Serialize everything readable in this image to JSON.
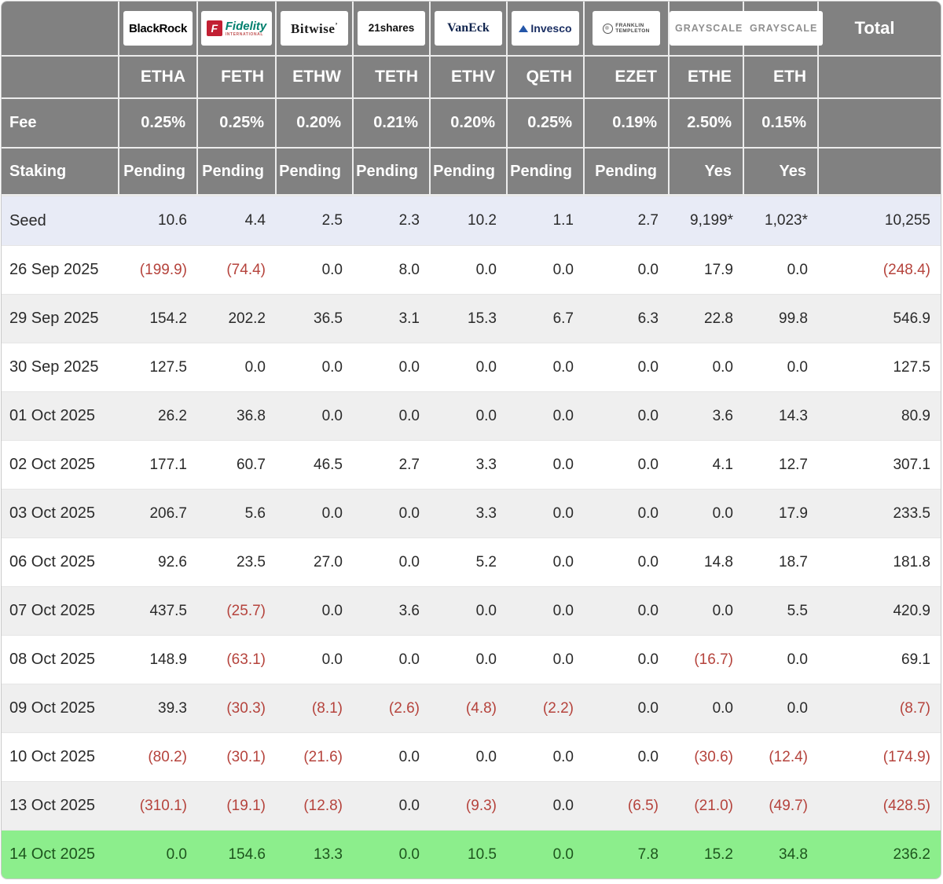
{
  "colors": {
    "header_bg": "#818181",
    "seed_bg": "#e8ebf6",
    "alt_bg": "#efefef",
    "green_bg": "#8cee8c",
    "green_text": "#1e551e",
    "negative": "#b5433c"
  },
  "header": {
    "fee_label": "Fee",
    "staking_label": "Staking",
    "total_label": "Total",
    "issuers": [
      {
        "name": "BlackRock",
        "ticker": "ETHA",
        "fee": "0.25%",
        "staking": "Pending"
      },
      {
        "name": "Fidelity",
        "mark": "F",
        "sub": "INTERNATIONAL",
        "ticker": "FETH",
        "fee": "0.25%",
        "staking": "Pending"
      },
      {
        "name": "Bitwise",
        "mark": "’",
        "ticker": "ETHW",
        "fee": "0.20%",
        "staking": "Pending"
      },
      {
        "name": "21shares",
        "ticker": "TETH",
        "fee": "0.21%",
        "staking": "Pending"
      },
      {
        "name": "VanEck",
        "ticker": "ETHV",
        "fee": "0.20%",
        "staking": "Pending"
      },
      {
        "name": "Invesco",
        "ticker": "QETH",
        "fee": "0.25%",
        "staking": "Pending"
      },
      {
        "name": "Franklin Templeton",
        "line1": "FRANKLIN",
        "line2": "TEMPLETON",
        "ticker": "EZET",
        "fee": "0.19%",
        "staking": "Pending"
      },
      {
        "name": "GRAYSCALE",
        "ticker": "ETHE",
        "fee": "2.50%",
        "staking": "Yes"
      },
      {
        "name": "GRAYSCALE",
        "ticker": "ETH",
        "fee": "0.15%",
        "staking": "Yes"
      }
    ]
  },
  "table": {
    "rows": [
      {
        "label": "Seed",
        "variant": "seed",
        "values": [
          "10.6",
          "4.4",
          "2.5",
          "2.3",
          "10.2",
          "1.1",
          "2.7",
          "9,199*",
          "1,023*",
          "10,255"
        ]
      },
      {
        "label": "26 Sep 2025",
        "values": [
          "(199.9)",
          "(74.4)",
          "0.0",
          "8.0",
          "0.0",
          "0.0",
          "0.0",
          "17.9",
          "0.0",
          "(248.4)"
        ]
      },
      {
        "label": "29 Sep 2025",
        "values": [
          "154.2",
          "202.2",
          "36.5",
          "3.1",
          "15.3",
          "6.7",
          "6.3",
          "22.8",
          "99.8",
          "546.9"
        ]
      },
      {
        "label": "30 Sep 2025",
        "values": [
          "127.5",
          "0.0",
          "0.0",
          "0.0",
          "0.0",
          "0.0",
          "0.0",
          "0.0",
          "0.0",
          "127.5"
        ]
      },
      {
        "label": "01 Oct 2025",
        "values": [
          "26.2",
          "36.8",
          "0.0",
          "0.0",
          "0.0",
          "0.0",
          "0.0",
          "3.6",
          "14.3",
          "80.9"
        ]
      },
      {
        "label": "02 Oct 2025",
        "values": [
          "177.1",
          "60.7",
          "46.5",
          "2.7",
          "3.3",
          "0.0",
          "0.0",
          "4.1",
          "12.7",
          "307.1"
        ]
      },
      {
        "label": "03 Oct 2025",
        "values": [
          "206.7",
          "5.6",
          "0.0",
          "0.0",
          "3.3",
          "0.0",
          "0.0",
          "0.0",
          "17.9",
          "233.5"
        ]
      },
      {
        "label": "06 Oct 2025",
        "values": [
          "92.6",
          "23.5",
          "27.0",
          "0.0",
          "5.2",
          "0.0",
          "0.0",
          "14.8",
          "18.7",
          "181.8"
        ]
      },
      {
        "label": "07 Oct 2025",
        "values": [
          "437.5",
          "(25.7)",
          "0.0",
          "3.6",
          "0.0",
          "0.0",
          "0.0",
          "0.0",
          "5.5",
          "420.9"
        ]
      },
      {
        "label": "08 Oct 2025",
        "values": [
          "148.9",
          "(63.1)",
          "0.0",
          "0.0",
          "0.0",
          "0.0",
          "0.0",
          "(16.7)",
          "0.0",
          "69.1"
        ]
      },
      {
        "label": "09 Oct 2025",
        "values": [
          "39.3",
          "(30.3)",
          "(8.1)",
          "(2.6)",
          "(4.8)",
          "(2.2)",
          "0.0",
          "0.0",
          "0.0",
          "(8.7)"
        ]
      },
      {
        "label": "10 Oct 2025",
        "values": [
          "(80.2)",
          "(30.1)",
          "(21.6)",
          "0.0",
          "0.0",
          "0.0",
          "0.0",
          "(30.6)",
          "(12.4)",
          "(174.9)"
        ]
      },
      {
        "label": "13 Oct 2025",
        "values": [
          "(310.1)",
          "(19.1)",
          "(12.8)",
          "0.0",
          "(9.3)",
          "0.0",
          "(6.5)",
          "(21.0)",
          "(49.7)",
          "(428.5)"
        ]
      },
      {
        "label": "14 Oct 2025",
        "variant": "green",
        "values": [
          "0.0",
          "154.6",
          "13.3",
          "0.0",
          "10.5",
          "0.0",
          "7.8",
          "15.2",
          "34.8",
          "236.2"
        ]
      }
    ]
  },
  "chart_data": {
    "type": "table",
    "columns": [
      "ETHA",
      "FETH",
      "ETHW",
      "TETH",
      "ETHV",
      "QETH",
      "EZET",
      "ETHE",
      "ETH",
      "Total"
    ],
    "issuers": [
      "BlackRock",
      "Fidelity",
      "Bitwise",
      "21shares",
      "VanEck",
      "Invesco",
      "Franklin Templeton",
      "Grayscale",
      "Grayscale"
    ],
    "fee_pct": [
      0.25,
      0.25,
      0.2,
      0.21,
      0.2,
      0.25,
      0.19,
      2.5,
      0.15
    ],
    "staking": [
      "Pending",
      "Pending",
      "Pending",
      "Pending",
      "Pending",
      "Pending",
      "Pending",
      "Yes",
      "Yes"
    ],
    "seed": [
      10.6,
      4.4,
      2.5,
      2.3,
      10.2,
      1.1,
      2.7,
      9199,
      1023,
      10255
    ],
    "seed_note": "Grayscale seed values marked with asterisk (9,199* and 1,023*)",
    "daily_flows": [
      {
        "date": "26 Sep 2025",
        "values": [
          -199.9,
          -74.4,
          0.0,
          8.0,
          0.0,
          0.0,
          0.0,
          17.9,
          0.0,
          -248.4
        ]
      },
      {
        "date": "29 Sep 2025",
        "values": [
          154.2,
          202.2,
          36.5,
          3.1,
          15.3,
          6.7,
          6.3,
          22.8,
          99.8,
          546.9
        ]
      },
      {
        "date": "30 Sep 2025",
        "values": [
          127.5,
          0.0,
          0.0,
          0.0,
          0.0,
          0.0,
          0.0,
          0.0,
          0.0,
          127.5
        ]
      },
      {
        "date": "01 Oct 2025",
        "values": [
          26.2,
          36.8,
          0.0,
          0.0,
          0.0,
          0.0,
          0.0,
          3.6,
          14.3,
          80.9
        ]
      },
      {
        "date": "02 Oct 2025",
        "values": [
          177.1,
          60.7,
          46.5,
          2.7,
          3.3,
          0.0,
          0.0,
          4.1,
          12.7,
          307.1
        ]
      },
      {
        "date": "03 Oct 2025",
        "values": [
          206.7,
          5.6,
          0.0,
          0.0,
          3.3,
          0.0,
          0.0,
          0.0,
          17.9,
          233.5
        ]
      },
      {
        "date": "06 Oct 2025",
        "values": [
          92.6,
          23.5,
          27.0,
          0.0,
          5.2,
          0.0,
          0.0,
          14.8,
          18.7,
          181.8
        ]
      },
      {
        "date": "07 Oct 2025",
        "values": [
          437.5,
          -25.7,
          0.0,
          3.6,
          0.0,
          0.0,
          0.0,
          0.0,
          5.5,
          420.9
        ]
      },
      {
        "date": "08 Oct 2025",
        "values": [
          148.9,
          -63.1,
          0.0,
          0.0,
          0.0,
          0.0,
          0.0,
          -16.7,
          0.0,
          69.1
        ]
      },
      {
        "date": "09 Oct 2025",
        "values": [
          39.3,
          -30.3,
          -8.1,
          -2.6,
          -4.8,
          -2.2,
          0.0,
          0.0,
          0.0,
          -8.7
        ]
      },
      {
        "date": "10 Oct 2025",
        "values": [
          -80.2,
          -30.1,
          -21.6,
          0.0,
          0.0,
          0.0,
          0.0,
          -30.6,
          -12.4,
          -174.9
        ]
      },
      {
        "date": "13 Oct 2025",
        "values": [
          -310.1,
          -19.1,
          -12.8,
          0.0,
          -9.3,
          0.0,
          -6.5,
          -21.0,
          -49.7,
          -428.5
        ]
      },
      {
        "date": "14 Oct 2025",
        "values": [
          0.0,
          154.6,
          13.3,
          0.0,
          10.5,
          0.0,
          7.8,
          15.2,
          34.8,
          236.2
        ]
      }
    ],
    "notes": "Negative values shown in red parentheses; last row (14 Oct 2025) highlighted green; Seed row highlighted lavender."
  }
}
